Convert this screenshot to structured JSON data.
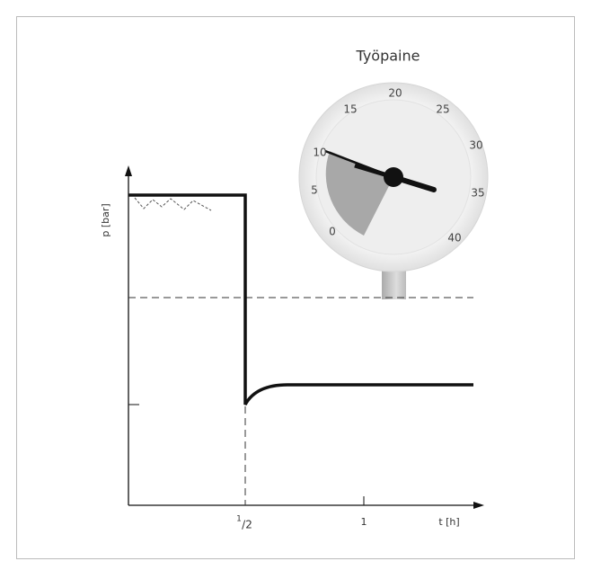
{
  "title": "Työpaine",
  "gauge": {
    "labels": [
      "0",
      "5",
      "10",
      "15",
      "20",
      "25",
      "30",
      "35",
      "40"
    ]
  },
  "axes": {
    "y_label": "p [bar]",
    "x_label": "t [h]",
    "x_ticks": [
      {
        "sup": "1",
        "text": "/2"
      },
      "1"
    ]
  }
}
